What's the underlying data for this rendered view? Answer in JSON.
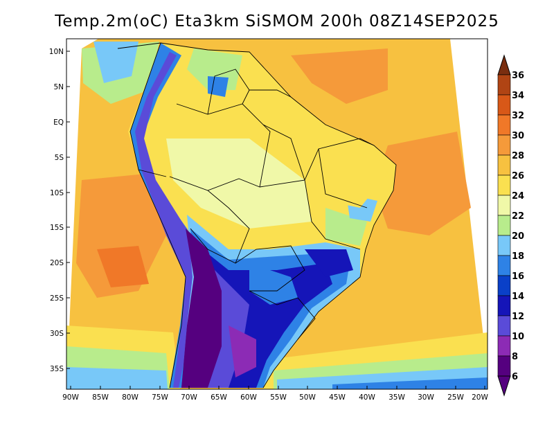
{
  "title": "Temp.2m(oC) Eta3km SiSMOM 200h 08Z14SEP2025",
  "axes": {
    "lat_labels": [
      "10N",
      "5N",
      "EQ",
      "5S",
      "10S",
      "15S",
      "20S",
      "25S",
      "30S",
      "35S"
    ],
    "lon_labels": [
      "90W",
      "85W",
      "80W",
      "75W",
      "70W",
      "65W",
      "60W",
      "55W",
      "50W",
      "45W",
      "40W",
      "35W",
      "30W",
      "25W",
      "20W"
    ]
  },
  "colorbar": {
    "units": "oC",
    "levels": [
      "6",
      "8",
      "10",
      "12",
      "14",
      "16",
      "18",
      "20",
      "22",
      "24",
      "26",
      "28",
      "30",
      "32",
      "34",
      "36"
    ],
    "colors": [
      "#55007f",
      "#8c2bb5",
      "#5a4bd8",
      "#1515b8",
      "#0a40c8",
      "#2e82e6",
      "#78c8f8",
      "#b8ec8c",
      "#f0f8a8",
      "#fae050",
      "#f7c140",
      "#f59a3a",
      "#f07828",
      "#d85818",
      "#b04414",
      "#7a2e10"
    ]
  }
}
